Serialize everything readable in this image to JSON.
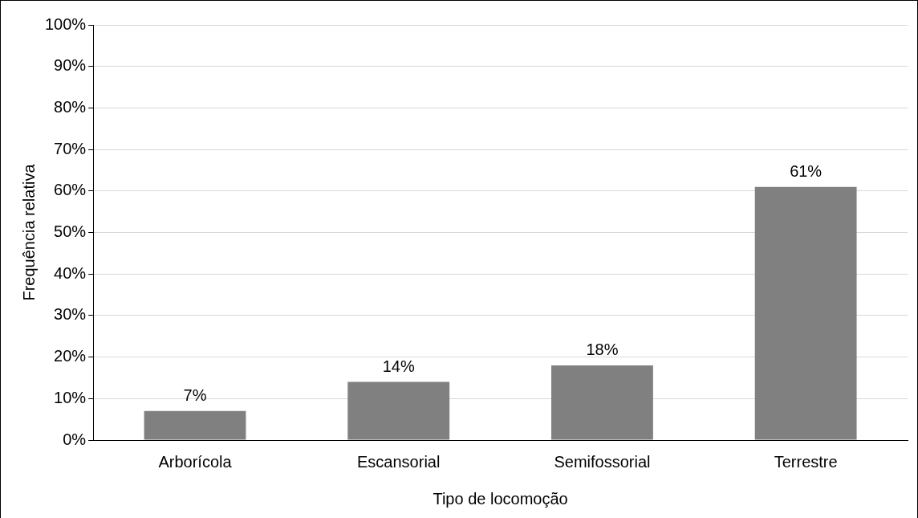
{
  "chart_data": {
    "type": "bar",
    "xlabel": "Tipo de locomoção",
    "ylabel": "Frequência relativa",
    "categories": [
      "Arborícola",
      "Escansorial",
      "Semifossorial",
      "Terrestre"
    ],
    "values": [
      7,
      14,
      18,
      61
    ],
    "color": "#808080",
    "value_labels": [
      "7%",
      "14%",
      "18%",
      "61%"
    ],
    "ylim": [
      0,
      100
    ],
    "yticks": [
      {
        "value": 0,
        "label": "0%"
      },
      {
        "value": 10,
        "label": "10%"
      },
      {
        "value": 20,
        "label": "20%"
      },
      {
        "value": 30,
        "label": "30%"
      },
      {
        "value": 40,
        "label": "40%"
      },
      {
        "value": 50,
        "label": "50%"
      },
      {
        "value": 60,
        "label": "60%"
      },
      {
        "value": 70,
        "label": "70%"
      },
      {
        "value": 80,
        "label": "80%"
      },
      {
        "value": 90,
        "label": "90%"
      },
      {
        "value": 100,
        "label": "100%"
      }
    ],
    "grid": "y"
  }
}
